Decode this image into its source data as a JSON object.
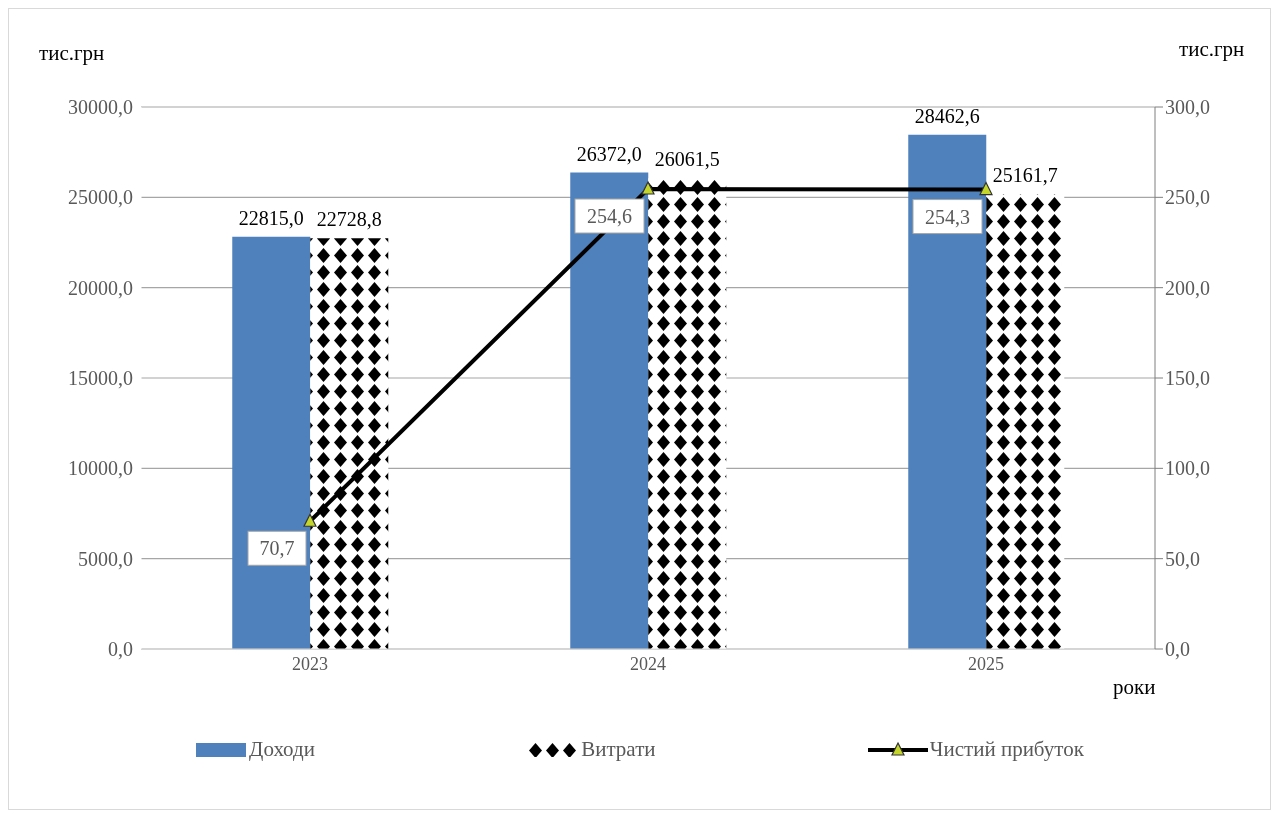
{
  "chart_data": {
    "type": "bar",
    "categories": [
      "2023",
      "2024",
      "2025"
    ],
    "series": [
      {
        "name": "Доходи",
        "color": "#4f81bd",
        "values": [
          22815.0,
          26372.0,
          28462.6
        ],
        "value_labels": [
          "22815,0",
          "26372,0",
          "28462,6"
        ]
      },
      {
        "name": "Витрати",
        "color": "#000000",
        "values": [
          22728.8,
          26061.5,
          25161.7
        ],
        "value_labels": [
          "22728,8",
          "26061,5",
          "25161,7"
        ]
      },
      {
        "name": "Чистий прибуток",
        "type": "line",
        "axis": "y2",
        "color": "#000000",
        "values": [
          70.7,
          254.6,
          254.3
        ],
        "value_labels": [
          "70,7",
          "254,6",
          "254,3"
        ]
      }
    ],
    "ylabel": "тис.грн",
    "y2label": "тис.грн",
    "xlabel": "роки",
    "ylim": [
      0,
      30000
    ],
    "yticks": [
      {
        "value": 0,
        "label": "0,0"
      },
      {
        "value": 5000,
        "label": "5000,0"
      },
      {
        "value": 10000,
        "label": "10000,0"
      },
      {
        "value": 15000,
        "label": "15000,0"
      },
      {
        "value": 20000,
        "label": "20000,0"
      },
      {
        "value": 25000,
        "label": "25000,0"
      },
      {
        "value": 30000,
        "label": "30000,0"
      }
    ],
    "y2lim": [
      0,
      300
    ],
    "y2ticks": [
      {
        "value": 0,
        "label": "0,0"
      },
      {
        "value": 50,
        "label": "50,0"
      },
      {
        "value": 100,
        "label": "100,0"
      },
      {
        "value": 150,
        "label": "150,0"
      },
      {
        "value": 200,
        "label": "200,0"
      },
      {
        "value": 250,
        "label": "250,0"
      },
      {
        "value": 300,
        "label": "300,0"
      }
    ],
    "grid": "y",
    "legend": "bottom",
    "marker": "triangle",
    "line_style": "solid"
  }
}
